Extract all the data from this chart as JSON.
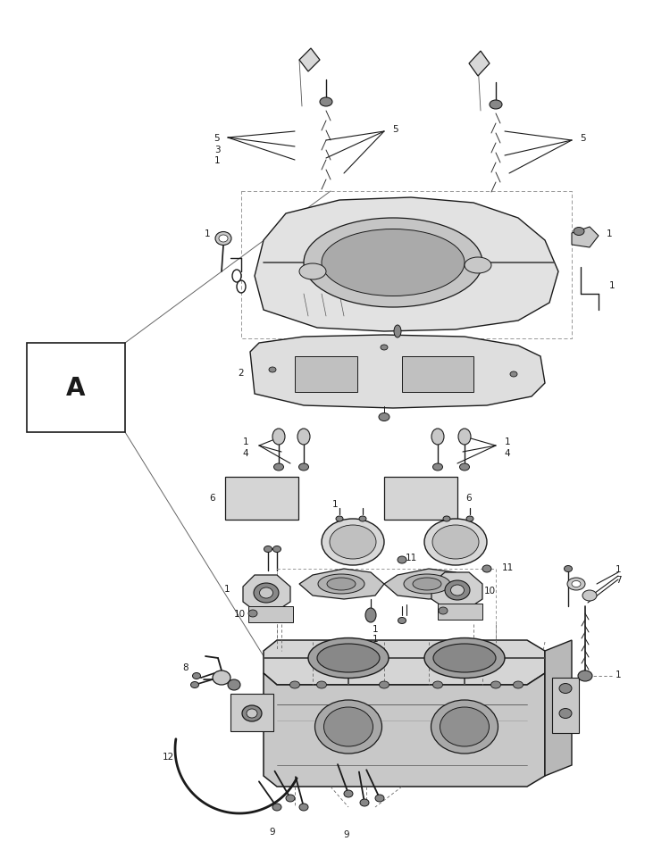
{
  "bg": "#ffffff",
  "fw": 7.5,
  "fh": 9.62,
  "lc": "#1a1a1a",
  "gray_light": "#c8c8c8",
  "gray_mid": "#888888",
  "gray_dark": "#555555"
}
